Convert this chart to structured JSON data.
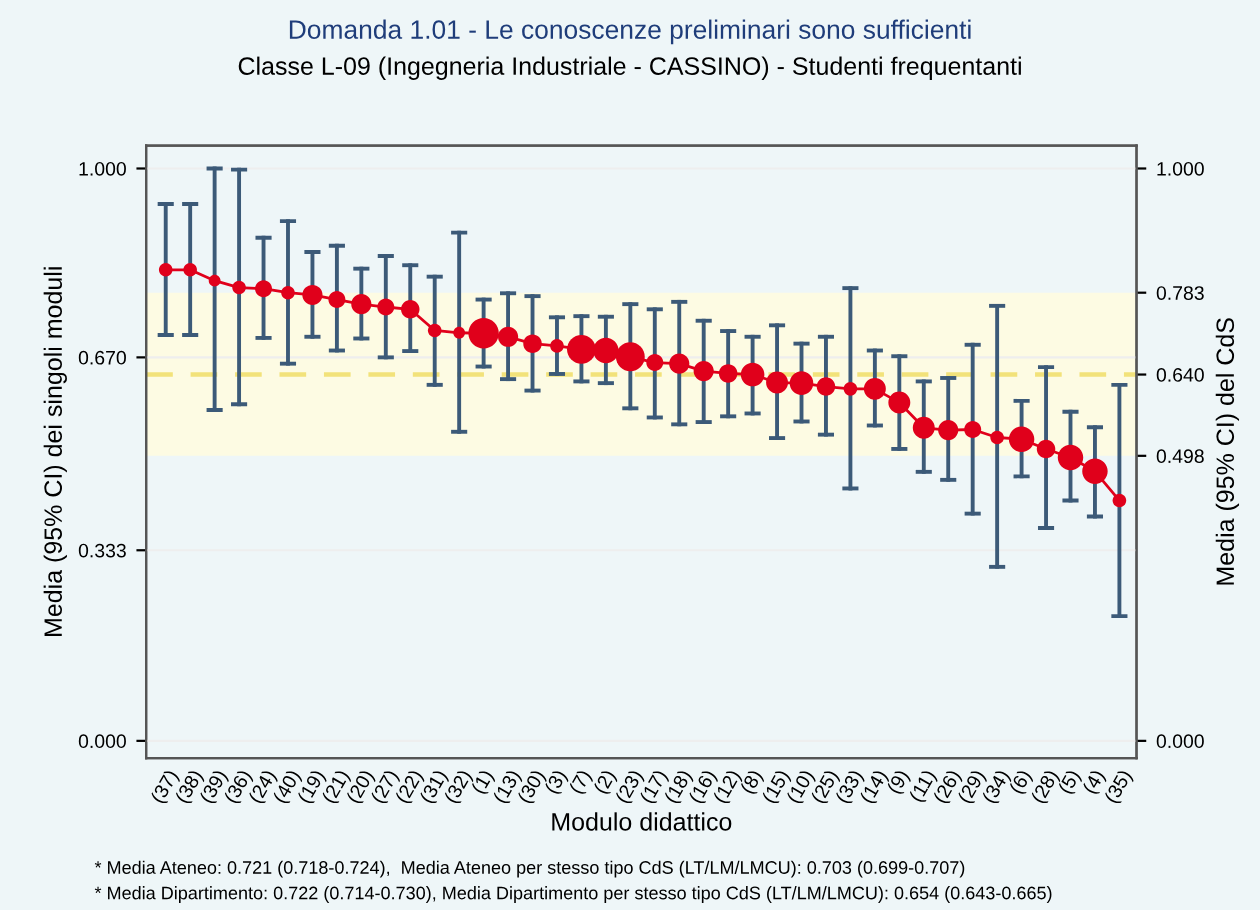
{
  "chart_data": {
    "type": "bubble",
    "title": "Domanda 1.01 - Le conoscenze preliminari sono sufficienti",
    "subtitle": "Classe L-09 (Ingegneria Industriale - CASSINO) - Studenti frequentanti",
    "xlabel": "Modulo didattico",
    "ylabel": "Media (95% CI) dei singoli moduli",
    "y2label": "Media (95% CI) del CdS",
    "categories": [
      "(37)",
      "(38)",
      "(39)",
      "(36)",
      "(24)",
      "(40)",
      "(19)",
      "(21)",
      "(20)",
      "(27)",
      "(22)",
      "(31)",
      "(32)",
      "(1)",
      "(13)",
      "(30)",
      "(3)",
      "(7)",
      "(2)",
      "(23)",
      "(17)",
      "(18)",
      "(16)",
      "(12)",
      "(8)",
      "(15)",
      "(10)",
      "(25)",
      "(33)",
      "(14)",
      "(9)",
      "(11)",
      "(26)",
      "(29)",
      "(34)",
      "(6)",
      "(28)",
      "(5)",
      "(4)",
      "(35)"
    ],
    "series": [
      {
        "type": "line",
        "line_style": "solid",
        "color": "#e0001b",
        "values": [
          0.823,
          0.823,
          0.804,
          0.792,
          0.79,
          0.783,
          0.779,
          0.771,
          0.763,
          0.758,
          0.754,
          0.717,
          0.713,
          0.712,
          0.706,
          0.694,
          0.69,
          0.684,
          0.682,
          0.671,
          0.661,
          0.659,
          0.646,
          0.642,
          0.64,
          0.626,
          0.625,
          0.619,
          0.615,
          0.615,
          0.591,
          0.547,
          0.543,
          0.544,
          0.53,
          0.527,
          0.51,
          0.495,
          0.471,
          0.42
        ]
      },
      {
        "color": "#e0001b",
        "values": [
          0.823,
          0.823,
          0.804,
          0.792,
          0.79,
          0.783,
          0.779,
          0.771,
          0.763,
          0.758,
          0.754,
          0.717,
          0.713,
          0.712,
          0.706,
          0.694,
          0.69,
          0.684,
          0.682,
          0.671,
          0.661,
          0.659,
          0.646,
          0.642,
          0.64,
          0.626,
          0.625,
          0.619,
          0.615,
          0.615,
          0.591,
          0.547,
          0.543,
          0.544,
          0.53,
          0.527,
          0.51,
          0.495,
          0.471,
          0.42
        ],
        "sizes": [
          0.2,
          0.2,
          0.15,
          0.2,
          0.31,
          0.2,
          0.44,
          0.31,
          0.44,
          0.31,
          0.37,
          0.2,
          0.15,
          1,
          0.44,
          0.37,
          0.2,
          0.9,
          0.7,
          0.9,
          0.31,
          0.44,
          0.44,
          0.37,
          0.6,
          0.52,
          0.6,
          0.37,
          0.2,
          0.52,
          0.52,
          0.52,
          0.44,
          0.31,
          0.2,
          0.7,
          0.37,
          0.7,
          0.7,
          0.2
        ],
        "errors": [
          [
            0.709,
            0.938
          ],
          [
            0.709,
            0.938
          ],
          [
            0.578,
            1.0
          ],
          [
            0.588,
            0.998
          ],
          [
            0.704,
            0.879
          ],
          [
            0.659,
            0.908
          ],
          [
            0.706,
            0.854
          ],
          [
            0.682,
            0.865
          ],
          [
            0.703,
            0.825
          ],
          [
            0.67,
            0.847
          ],
          [
            0.681,
            0.831
          ],
          [
            0.622,
            0.811
          ],
          [
            0.54,
            0.888
          ],
          [
            0.654,
            0.771
          ],
          [
            0.632,
            0.782
          ],
          [
            0.612,
            0.777
          ],
          [
            0.641,
            0.74
          ],
          [
            0.628,
            0.742
          ],
          [
            0.625,
            0.741
          ],
          [
            0.581,
            0.763
          ],
          [
            0.565,
            0.754
          ],
          [
            0.553,
            0.767
          ],
          [
            0.557,
            0.734
          ],
          [
            0.567,
            0.716
          ],
          [
            0.572,
            0.706
          ],
          [
            0.529,
            0.726
          ],
          [
            0.558,
            0.694
          ],
          [
            0.535,
            0.706
          ],
          [
            0.441,
            0.791
          ],
          [
            0.551,
            0.682
          ],
          [
            0.51,
            0.672
          ],
          [
            0.47,
            0.628
          ],
          [
            0.456,
            0.634
          ],
          [
            0.397,
            0.692
          ],
          [
            0.304,
            0.76
          ],
          [
            0.462,
            0.594
          ],
          [
            0.372,
            0.653
          ],
          [
            0.42,
            0.575
          ],
          [
            0.392,
            0.548
          ],
          [
            0.218,
            0.622
          ]
        ]
      }
    ],
    "ylim": [
      -0.03,
      1.04
    ],
    "yticks": [
      {
        "value": 0,
        "label": "0.000"
      },
      {
        "value": 0.333,
        "label": "0.333"
      },
      {
        "value": 0.67,
        "label": "0.670"
      },
      {
        "value": 1,
        "label": "1.000"
      }
    ],
    "y2lim": [
      -0.03,
      1.04
    ],
    "y2ticks": [
      {
        "value": 0,
        "label": "0.000"
      },
      {
        "value": 0.498,
        "label": "0.498"
      },
      {
        "value": 0.64,
        "label": "0.640"
      },
      {
        "value": 0.783,
        "label": "0.783"
      },
      {
        "value": 1,
        "label": "1.000"
      }
    ],
    "bands": [
      {
        "axis": "y2",
        "from": 0.498,
        "to": 0.783,
        "color": "#fdfbe3"
      }
    ],
    "ref_lines": [
      {
        "axis": "y2",
        "value": 0.64,
        "color": "#f2e27a",
        "line_style": "dashed"
      }
    ],
    "grid": "y",
    "annotations": [
      "* Media Ateneo: 0.721 (0.718-0.724),  Media Ateneo per stesso tipo CdS (LT/LM/LMCU): 0.703 (0.699-0.707)",
      "* Media Dipartimento: 0.722 (0.714-0.730), Media Dipartimento per stesso tipo CdS (LT/LM/LMCU): 0.654 (0.643-0.665)"
    ]
  }
}
